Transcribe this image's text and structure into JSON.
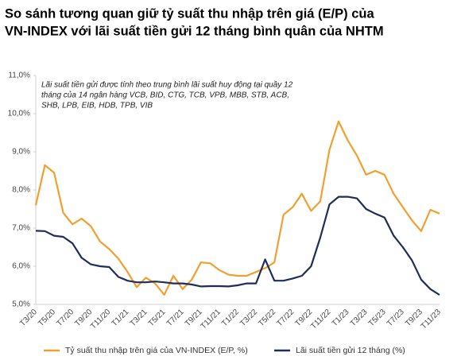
{
  "chart_data": {
    "type": "line",
    "title": [
      "So sánh tương quan giữ tỷ suất thu nhập trên giá (E/P) của",
      "VN-INDEX với lãi suất tiền gửi 12 tháng bình quân của NHTM"
    ],
    "annotation": [
      "Lãi suất tiền gửi được tính theo trung bình lãi suất huy động tại quầy 12",
      "tháng của 14 ngân hàng VCB, BID, CTG, TCB, VPB, MBB, STB, ACB,",
      "SHB, LPB, EIB, HDB, TPB, VIB"
    ],
    "categories": [
      "T3/20",
      null,
      "T5/20",
      null,
      "T7/20",
      null,
      "T9/20",
      null,
      "T11/20",
      null,
      "T1/21",
      null,
      "T3/21",
      null,
      "T5/21",
      null,
      "T7/21",
      null,
      "T9/21",
      null,
      "T11/21",
      null,
      "T1/22",
      null,
      "T3/22",
      null,
      "T5/22",
      null,
      "T7/22",
      null,
      "T9/22",
      null,
      "T11/22",
      null,
      "T1/23",
      null,
      "T3/23",
      null,
      "T5/23",
      null,
      "T7/23",
      null,
      "T9/23",
      null,
      "T11/23"
    ],
    "series": [
      {
        "name": "Tỷ suất thu nhập trên giá của VN-INDEX (E/P, %)",
        "color": "#f0a030",
        "values": [
          7.6,
          8.65,
          8.45,
          7.4,
          7.1,
          7.25,
          7.05,
          6.65,
          6.45,
          6.2,
          5.85,
          5.45,
          5.7,
          5.55,
          5.25,
          5.75,
          5.4,
          5.65,
          6.1,
          6.08,
          5.9,
          5.78,
          5.75,
          5.75,
          5.85,
          5.95,
          6.1,
          7.35,
          7.55,
          7.9,
          7.45,
          7.7,
          9.05,
          9.8,
          9.3,
          8.9,
          8.4,
          8.5,
          8.4,
          7.9,
          7.55,
          7.2,
          6.92,
          7.48,
          7.38
        ]
      },
      {
        "name": "Lãi suất tiền gửi 12 tháng  (%)",
        "color": "#1f2d5a",
        "values": [
          6.93,
          6.92,
          6.8,
          6.77,
          6.6,
          6.22,
          6.05,
          6.0,
          5.98,
          5.72,
          5.62,
          5.58,
          5.58,
          5.6,
          5.58,
          5.55,
          5.55,
          5.52,
          5.47,
          5.48,
          5.48,
          5.47,
          5.5,
          5.55,
          5.55,
          6.18,
          5.62,
          5.62,
          5.68,
          5.75,
          6.0,
          6.75,
          7.62,
          7.82,
          7.82,
          7.78,
          7.5,
          7.38,
          7.28,
          6.8,
          6.5,
          6.15,
          5.65,
          5.4,
          5.25
        ]
      }
    ],
    "ylim": [
      5,
      11
    ],
    "yticks": [
      {
        "value": 5,
        "label": "5,0%"
      },
      {
        "value": 6,
        "label": "6,0%"
      },
      {
        "value": 7,
        "label": "7,0%"
      },
      {
        "value": 8,
        "label": "8,0%"
      },
      {
        "value": 9,
        "label": "9,0%"
      },
      {
        "value": 10,
        "label": "10,0%"
      },
      {
        "value": 11,
        "label": "11,0%"
      }
    ],
    "grid": false
  }
}
